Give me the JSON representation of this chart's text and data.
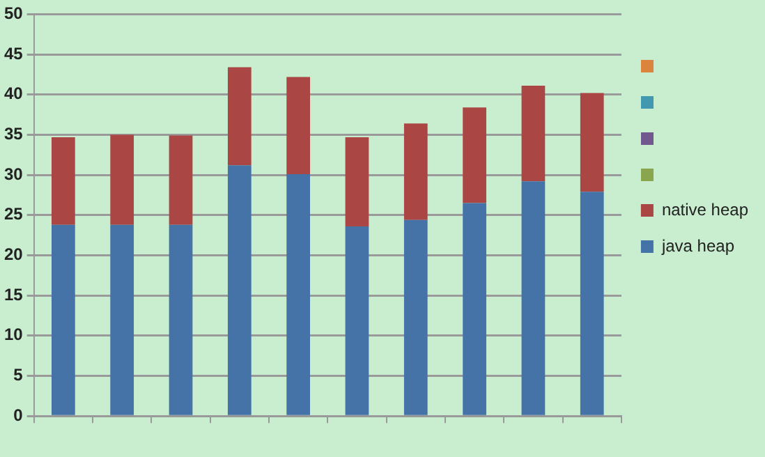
{
  "chart_data": {
    "type": "bar",
    "stacked": true,
    "categories": [
      null,
      null,
      null,
      null,
      null,
      null,
      null,
      null,
      null,
      null
    ],
    "series": [
      {
        "name": "java heap",
        "color": "#4572a7",
        "values": [
          23.8,
          23.8,
          23.8,
          31.2,
          30.1,
          23.6,
          24.4,
          26.5,
          29.2,
          27.9
        ]
      },
      {
        "name": "native heap",
        "color": "#aa4643",
        "values": [
          10.9,
          11.2,
          11.1,
          12.2,
          12.1,
          11.1,
          12.0,
          11.9,
          11.9,
          12.3
        ]
      }
    ],
    "ylim": [
      0,
      50
    ],
    "yticks": [
      0,
      5,
      10,
      15,
      20,
      25,
      30,
      35,
      40,
      45,
      50
    ],
    "grid": "y",
    "legend": "right"
  }
}
